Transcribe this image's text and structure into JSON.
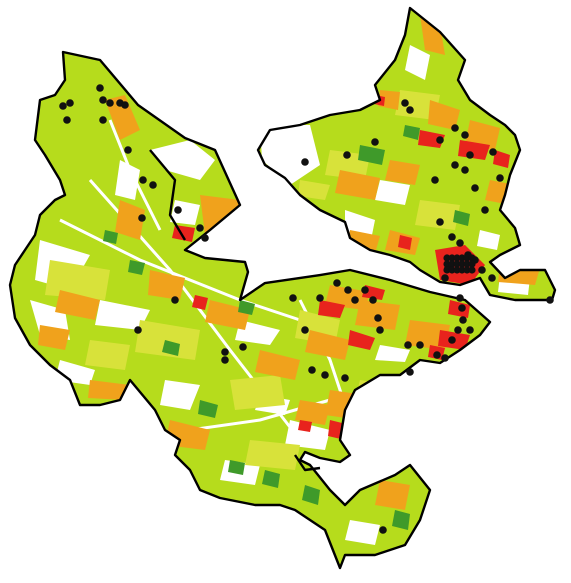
{
  "map": {
    "colors": {
      "background": "#ffffff",
      "boundary": "#000000",
      "class_light_green": "#b6dc1c",
      "class_yellow_green": "#d8e23a",
      "class_orange": "#f0a21c",
      "class_red": "#e8231d",
      "class_dark_green": "#3f9a2a",
      "sample_point": "#111111"
    },
    "icons": {
      "sample_point": "filled-circle"
    }
  }
}
